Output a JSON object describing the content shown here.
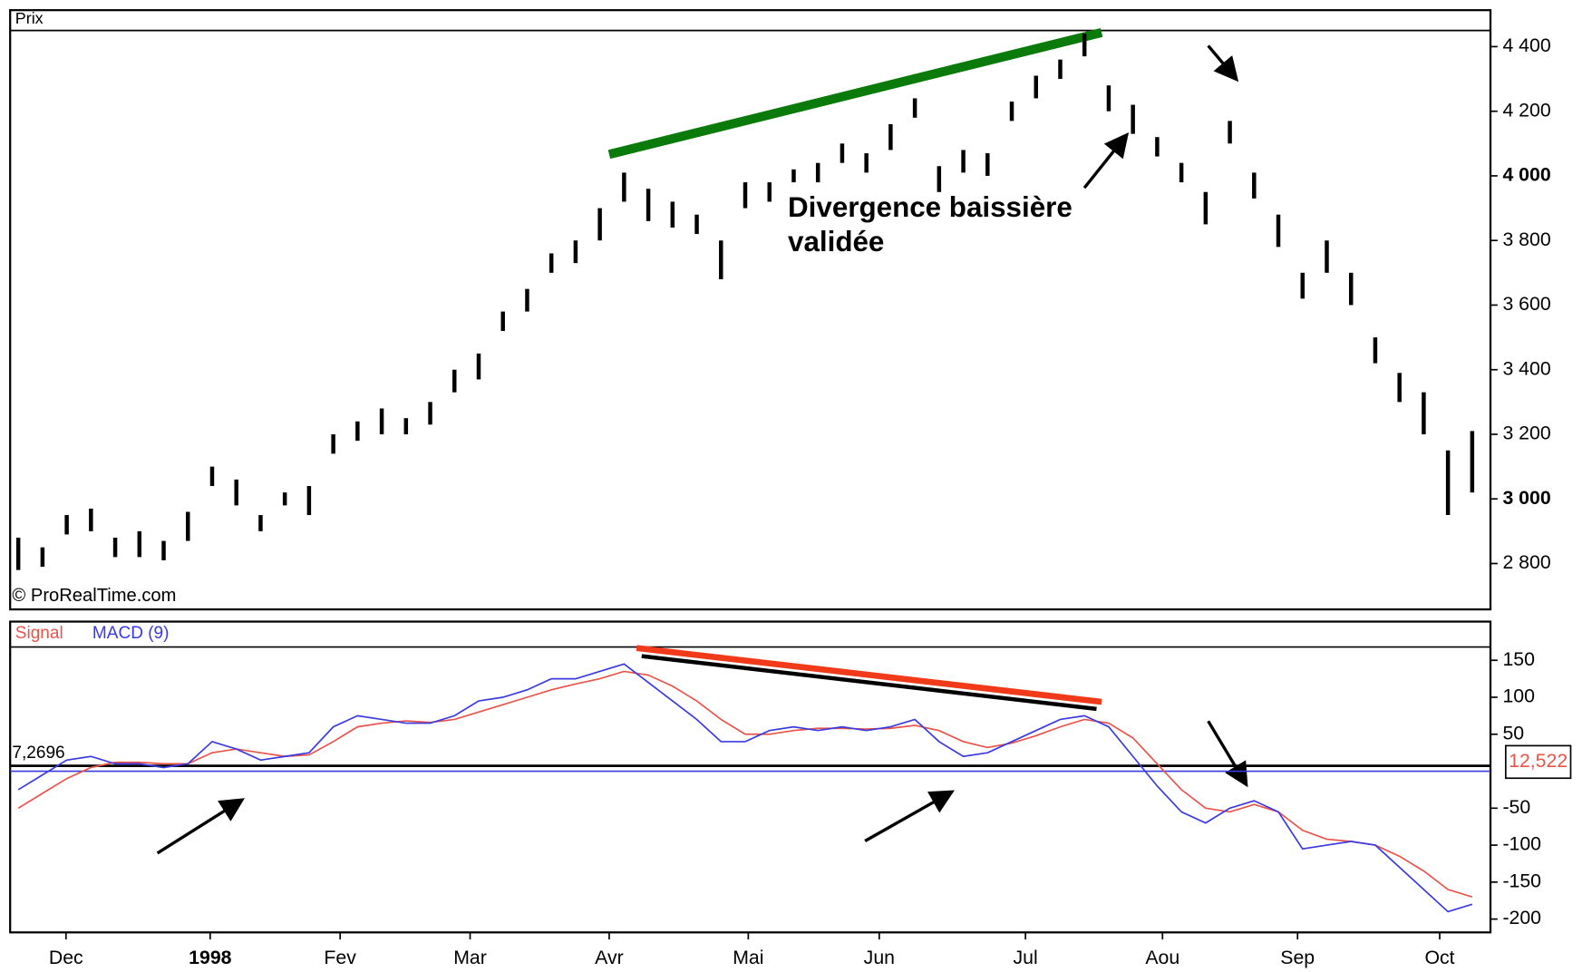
{
  "chart_data": [
    {
      "type": "range-bar",
      "title": "Prix",
      "source": "© ProRealTime.com",
      "color": "#000000",
      "annotations": [
        "Divergence baissière",
        "validée"
      ],
      "high": [
        2880,
        2850,
        2950,
        2970,
        2880,
        2900,
        2870,
        2960,
        3100,
        3060,
        2950,
        3020,
        3040,
        3200,
        3240,
        3280,
        3250,
        3300,
        3400,
        3450,
        3580,
        3650,
        3760,
        3800,
        3900,
        4010,
        3960,
        3920,
        3880,
        3800,
        3980,
        3980,
        4020,
        4040,
        4100,
        4070,
        4160,
        4240,
        4030,
        4080,
        4070,
        4230,
        4310,
        4360,
        4440,
        4280,
        4220,
        4120,
        4040,
        3950,
        4170,
        4010,
        3880,
        3700,
        3800,
        3700,
        3500,
        3390,
        3330,
        3150,
        3210
      ],
      "low": [
        2780,
        2790,
        2890,
        2900,
        2820,
        2820,
        2810,
        2870,
        3040,
        2980,
        2900,
        2980,
        2950,
        3140,
        3180,
        3200,
        3200,
        3230,
        3330,
        3370,
        3520,
        3580,
        3700,
        3730,
        3800,
        3920,
        3860,
        3840,
        3820,
        3680,
        3900,
        3920,
        3980,
        3980,
        4040,
        4010,
        4080,
        4180,
        3950,
        4010,
        4000,
        4170,
        4240,
        4300,
        4370,
        4200,
        4130,
        4060,
        3980,
        3850,
        4100,
        3930,
        3780,
        3620,
        3700,
        3600,
        3420,
        3300,
        3200,
        2950,
        3020
      ],
      "ylim": [
        2658,
        4450
      ],
      "yticks": [
        {
          "value": 2800,
          "label": "2 800"
        },
        {
          "value": 3000,
          "label": "3 000"
        },
        {
          "value": 3200,
          "label": "3 200"
        },
        {
          "value": 3400,
          "label": "3 400"
        },
        {
          "value": 3600,
          "label": "3 600"
        },
        {
          "value": 3800,
          "label": "3 800"
        },
        {
          "value": 4000,
          "label": "4 000"
        },
        {
          "value": 4200,
          "label": "4 200"
        },
        {
          "value": 4400,
          "label": "4 400"
        }
      ]
    },
    {
      "type": "line",
      "series": [
        {
          "name": "Signal",
          "color": "#e8534a",
          "values": [
            -50,
            -30,
            -10,
            5,
            12,
            12,
            10,
            10,
            25,
            30,
            25,
            20,
            22,
            40,
            60,
            65,
            68,
            66,
            70,
            80,
            90,
            100,
            110,
            118,
            125,
            135,
            130,
            115,
            95,
            70,
            50,
            50,
            55,
            58,
            58,
            57,
            58,
            62,
            55,
            40,
            32,
            38,
            48,
            60,
            70,
            65,
            45,
            10,
            -25,
            -50,
            -55,
            -45,
            -55,
            -80,
            -92,
            -95,
            -100,
            -115,
            -135,
            -160,
            -170
          ]
        },
        {
          "name": "MACD (9)",
          "color": "#3a3ae0",
          "values": [
            -25,
            -5,
            15,
            20,
            10,
            10,
            5,
            10,
            40,
            30,
            15,
            20,
            25,
            60,
            75,
            70,
            65,
            65,
            75,
            95,
            100,
            110,
            125,
            125,
            135,
            145,
            120,
            95,
            70,
            40,
            40,
            55,
            60,
            55,
            60,
            55,
            60,
            70,
            40,
            20,
            25,
            40,
            55,
            70,
            75,
            60,
            20,
            -20,
            -55,
            -70,
            -50,
            -40,
            -55,
            -105,
            -100,
            -95,
            -100,
            -130,
            -160,
            -190,
            -180
          ]
        }
      ],
      "levels": [
        {
          "value": 7.2696,
          "label": "7,2696"
        },
        {
          "value": 12.522,
          "label": "12,522"
        }
      ],
      "ylim": [
        -218,
        168
      ],
      "yticks": [
        -200,
        -150,
        -100,
        -50,
        50,
        100,
        150
      ],
      "x_labels": [
        "Dec",
        "1998",
        "Fev",
        "Mar",
        "Avr",
        "Mai",
        "Jun",
        "Jul",
        "Aou",
        "Sep",
        "Oct"
      ]
    }
  ]
}
